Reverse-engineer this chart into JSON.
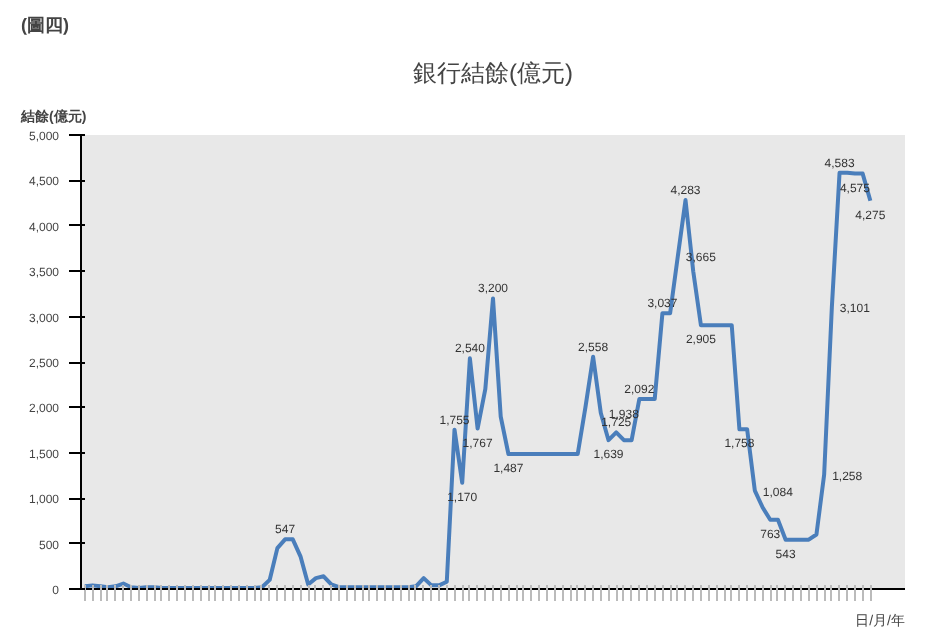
{
  "chart_data": {
    "type": "line",
    "title": "銀行結餘(億元)",
    "ylabel": "結餘(億元)",
    "xlabel": "日/月/年",
    "annotations": [
      "(圖四)"
    ],
    "categories": [
      null,
      null,
      null,
      null,
      null,
      null,
      null,
      null,
      null,
      null,
      null,
      null,
      null,
      null,
      null,
      null,
      null,
      null,
      null,
      null,
      null,
      null,
      null,
      null,
      null,
      null,
      null,
      null,
      null,
      null,
      null,
      null,
      null,
      null,
      null,
      null,
      null,
      null,
      null,
      null,
      null,
      null,
      null,
      null,
      null,
      null,
      null,
      null,
      null,
      null,
      null,
      null,
      null,
      null,
      null,
      null,
      null,
      null,
      null,
      null,
      null,
      null,
      null,
      null,
      null,
      null,
      null,
      null,
      null,
      null,
      null,
      null,
      null,
      null,
      null,
      null,
      null,
      null,
      null,
      null,
      null,
      null,
      null,
      null,
      null,
      null,
      null,
      null,
      null,
      null,
      null,
      null,
      null,
      null,
      null,
      null,
      null,
      null,
      null,
      null,
      null,
      null,
      null
    ],
    "series": [
      {
        "color": "#4a7ebb",
        "values": [
          30,
          40,
          30,
          20,
          30,
          60,
          20,
          10,
          20,
          20,
          10,
          10,
          10,
          10,
          10,
          10,
          10,
          10,
          10,
          10,
          10,
          10,
          10,
          20,
          100,
          450,
          547,
          547,
          360,
          50,
          120,
          140,
          50,
          20,
          20,
          20,
          20,
          20,
          20,
          20,
          20,
          20,
          20,
          30,
          120,
          40,
          40,
          80,
          1755,
          1170,
          2540,
          1767,
          2200,
          3200,
          1900,
          1487,
          1487,
          1487,
          1487,
          1487,
          1487,
          1487,
          1487,
          1487,
          1487,
          2000,
          2558,
          1938,
          1639,
          1725,
          1639,
          1639,
          2092,
          2092,
          2092,
          3037,
          3037,
          3665,
          4283,
          3500,
          2905,
          2905,
          2905,
          2905,
          2905,
          1758,
          1758,
          1084,
          900,
          763,
          763,
          543,
          543,
          543,
          543,
          600,
          1258,
          3101,
          4583,
          4583,
          4575,
          4575,
          4275
        ],
        "value_labels": [
          null,
          null,
          null,
          null,
          null,
          null,
          null,
          null,
          null,
          null,
          null,
          null,
          null,
          null,
          null,
          null,
          null,
          null,
          null,
          null,
          null,
          null,
          null,
          null,
          null,
          null,
          "547",
          null,
          null,
          null,
          null,
          null,
          null,
          null,
          null,
          null,
          null,
          null,
          null,
          null,
          null,
          null,
          null,
          null,
          null,
          null,
          null,
          null,
          "1,755",
          "1,170",
          "2,540",
          "1,767",
          null,
          "3,200",
          null,
          "1,487",
          null,
          null,
          null,
          null,
          null,
          null,
          null,
          null,
          null,
          null,
          "2,558",
          "1,938",
          "1,639",
          "1,725",
          null,
          null,
          "2,092",
          null,
          null,
          "3,037",
          null,
          "3,665",
          "4,283",
          null,
          "2,905",
          null,
          null,
          null,
          null,
          "1,758",
          null,
          "1,084",
          null,
          "763",
          null,
          "543",
          null,
          null,
          null,
          null,
          "1,258",
          "3,101",
          "4,583",
          null,
          "4,575",
          null,
          "4,275"
        ]
      }
    ],
    "ylim": [
      0,
      5000
    ],
    "yticks": [
      {
        "value": 0,
        "label": "0"
      },
      {
        "value": 500,
        "label": "500"
      },
      {
        "value": 1000,
        "label": "1,000"
      },
      {
        "value": 1500,
        "label": "1,500"
      },
      {
        "value": 2000,
        "label": "2,000"
      },
      {
        "value": 2500,
        "label": "2,500"
      },
      {
        "value": 3000,
        "label": "3,000"
      },
      {
        "value": 3500,
        "label": "3,500"
      },
      {
        "value": 4000,
        "label": "4,000"
      },
      {
        "value": 4500,
        "label": "4,500"
      },
      {
        "value": 5000,
        "label": "5,000"
      }
    ],
    "tick_labels": "y",
    "grid": false,
    "marker": "none",
    "line_style": "solid"
  }
}
